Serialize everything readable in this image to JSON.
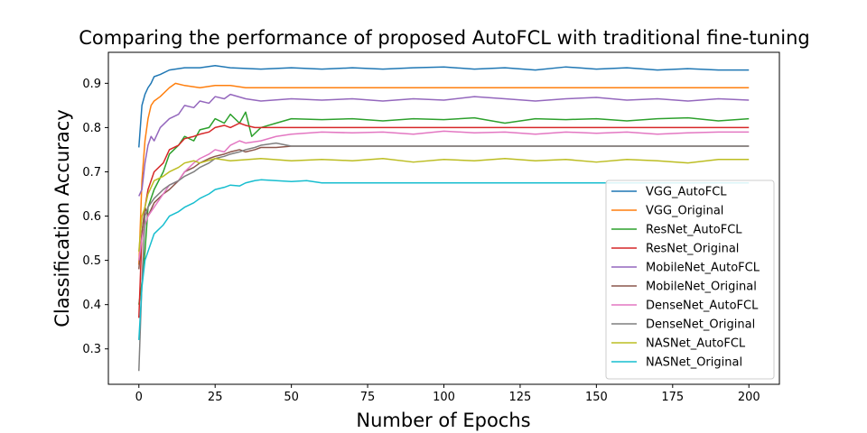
{
  "chart_data": {
    "type": "line",
    "title": "Comparing the performance of proposed AutoFCL with traditional fine-tuning",
    "xlabel": "Number of Epochs",
    "ylabel": "Classification Accuracy",
    "xlim": [
      -10,
      210
    ],
    "ylim": [
      0.22,
      0.97
    ],
    "xticks": [
      0,
      25,
      50,
      75,
      100,
      125,
      150,
      175,
      200
    ],
    "yticks": [
      0.3,
      0.4,
      0.5,
      0.6,
      0.7,
      0.8,
      0.9
    ],
    "grid": false,
    "legend_position": "lower-right",
    "series": [
      {
        "name": "VGG_AutoFCL",
        "color": "#1f77b4",
        "x": [
          0,
          1,
          2,
          3,
          4,
          5,
          7,
          10,
          15,
          20,
          25,
          30,
          40,
          50,
          60,
          70,
          80,
          90,
          100,
          110,
          120,
          130,
          140,
          150,
          160,
          170,
          180,
          190,
          200
        ],
        "y": [
          0.755,
          0.85,
          0.875,
          0.89,
          0.9,
          0.915,
          0.92,
          0.93,
          0.935,
          0.935,
          0.94,
          0.935,
          0.932,
          0.935,
          0.932,
          0.935,
          0.932,
          0.935,
          0.937,
          0.932,
          0.935,
          0.93,
          0.937,
          0.932,
          0.935,
          0.93,
          0.933,
          0.93,
          0.93
        ]
      },
      {
        "name": "VGG_Original",
        "color": "#ff7f0e",
        "x": [
          0,
          1,
          2,
          3,
          4,
          5,
          7,
          10,
          12,
          15,
          20,
          25,
          30,
          35,
          40,
          200
        ],
        "y": [
          0.49,
          0.68,
          0.77,
          0.82,
          0.85,
          0.86,
          0.87,
          0.89,
          0.9,
          0.895,
          0.89,
          0.895,
          0.895,
          0.89,
          0.89,
          0.89
        ]
      },
      {
        "name": "ResNet_AutoFCL",
        "color": "#2ca02c",
        "x": [
          0,
          1,
          2,
          3,
          5,
          8,
          10,
          13,
          15,
          18,
          20,
          23,
          25,
          28,
          30,
          33,
          35,
          37,
          40,
          45,
          50,
          60,
          70,
          80,
          90,
          100,
          110,
          120,
          130,
          140,
          150,
          160,
          170,
          180,
          190,
          200
        ],
        "y": [
          0.4,
          0.45,
          0.52,
          0.62,
          0.66,
          0.7,
          0.74,
          0.76,
          0.78,
          0.77,
          0.795,
          0.8,
          0.82,
          0.81,
          0.83,
          0.81,
          0.835,
          0.78,
          0.8,
          0.81,
          0.82,
          0.818,
          0.82,
          0.815,
          0.82,
          0.818,
          0.822,
          0.81,
          0.82,
          0.818,
          0.82,
          0.815,
          0.82,
          0.822,
          0.815,
          0.82
        ]
      },
      {
        "name": "ResNet_Original",
        "color": "#d62728",
        "x": [
          0,
          1,
          2,
          3,
          5,
          8,
          10,
          13,
          15,
          18,
          20,
          23,
          25,
          28,
          30,
          33,
          35,
          38,
          40,
          200
        ],
        "y": [
          0.37,
          0.56,
          0.62,
          0.66,
          0.7,
          0.72,
          0.75,
          0.76,
          0.775,
          0.78,
          0.785,
          0.79,
          0.8,
          0.805,
          0.8,
          0.81,
          0.805,
          0.8,
          0.8,
          0.8
        ]
      },
      {
        "name": "MobileNet_AutoFCL",
        "color": "#9467bd",
        "x": [
          0,
          1,
          2,
          3,
          4,
          5,
          7,
          10,
          13,
          15,
          18,
          20,
          23,
          25,
          28,
          30,
          35,
          40,
          50,
          60,
          70,
          80,
          90,
          100,
          110,
          120,
          130,
          140,
          150,
          160,
          170,
          180,
          190,
          200
        ],
        "y": [
          0.645,
          0.66,
          0.72,
          0.76,
          0.78,
          0.77,
          0.8,
          0.82,
          0.83,
          0.85,
          0.845,
          0.86,
          0.855,
          0.87,
          0.865,
          0.875,
          0.865,
          0.86,
          0.865,
          0.862,
          0.865,
          0.86,
          0.865,
          0.862,
          0.87,
          0.865,
          0.86,
          0.865,
          0.868,
          0.862,
          0.865,
          0.86,
          0.865,
          0.862
        ]
      },
      {
        "name": "MobileNet_Original",
        "color": "#8c564b",
        "x": [
          0,
          1,
          2,
          3,
          5,
          8,
          10,
          13,
          15,
          18,
          20,
          23,
          25,
          28,
          30,
          33,
          35,
          38,
          40,
          45,
          50,
          200
        ],
        "y": [
          0.48,
          0.56,
          0.62,
          0.6,
          0.63,
          0.65,
          0.66,
          0.68,
          0.7,
          0.71,
          0.72,
          0.73,
          0.735,
          0.74,
          0.745,
          0.75,
          0.745,
          0.75,
          0.755,
          0.755,
          0.758,
          0.758
        ]
      },
      {
        "name": "DenseNet_AutoFCL",
        "color": "#e377c2",
        "x": [
          0,
          1,
          2,
          3,
          5,
          8,
          10,
          13,
          15,
          18,
          20,
          23,
          25,
          28,
          30,
          33,
          35,
          40,
          45,
          50,
          60,
          70,
          80,
          90,
          100,
          110,
          120,
          130,
          140,
          150,
          160,
          170,
          180,
          190,
          200
        ],
        "y": [
          0.5,
          0.55,
          0.58,
          0.6,
          0.62,
          0.65,
          0.67,
          0.68,
          0.7,
          0.72,
          0.73,
          0.74,
          0.75,
          0.745,
          0.76,
          0.77,
          0.765,
          0.77,
          0.78,
          0.785,
          0.79,
          0.788,
          0.79,
          0.785,
          0.792,
          0.788,
          0.79,
          0.785,
          0.79,
          0.787,
          0.79,
          0.785,
          0.788,
          0.79,
          0.79
        ]
      },
      {
        "name": "DenseNet_Original",
        "color": "#7f7f7f",
        "x": [
          0,
          1,
          2,
          3,
          5,
          8,
          10,
          13,
          15,
          18,
          20,
          23,
          25,
          28,
          30,
          33,
          35,
          38,
          40,
          45,
          50,
          200
        ],
        "y": [
          0.25,
          0.45,
          0.6,
          0.62,
          0.64,
          0.66,
          0.67,
          0.68,
          0.69,
          0.7,
          0.71,
          0.72,
          0.73,
          0.735,
          0.74,
          0.745,
          0.75,
          0.755,
          0.76,
          0.765,
          0.758,
          0.758
        ]
      },
      {
        "name": "NASNet_AutoFCL",
        "color": "#bcbd22",
        "x": [
          0,
          1,
          2,
          3,
          5,
          8,
          10,
          13,
          15,
          18,
          20,
          25,
          30,
          40,
          50,
          60,
          70,
          80,
          90,
          100,
          110,
          120,
          130,
          140,
          150,
          160,
          170,
          180,
          190,
          200
        ],
        "y": [
          0.52,
          0.6,
          0.62,
          0.65,
          0.68,
          0.69,
          0.7,
          0.71,
          0.72,
          0.725,
          0.72,
          0.73,
          0.725,
          0.73,
          0.725,
          0.728,
          0.725,
          0.73,
          0.722,
          0.728,
          0.725,
          0.73,
          0.725,
          0.728,
          0.722,
          0.728,
          0.725,
          0.72,
          0.728,
          0.728
        ]
      },
      {
        "name": "NASNet_Original",
        "color": "#17becf",
        "x": [
          0,
          1,
          2,
          3,
          5,
          8,
          10,
          13,
          15,
          18,
          20,
          23,
          25,
          28,
          30,
          33,
          35,
          38,
          40,
          45,
          50,
          55,
          60,
          200
        ],
        "y": [
          0.32,
          0.44,
          0.5,
          0.52,
          0.56,
          0.58,
          0.6,
          0.61,
          0.62,
          0.63,
          0.64,
          0.65,
          0.66,
          0.665,
          0.67,
          0.668,
          0.675,
          0.68,
          0.682,
          0.68,
          0.678,
          0.68,
          0.675,
          0.675
        ]
      }
    ]
  }
}
